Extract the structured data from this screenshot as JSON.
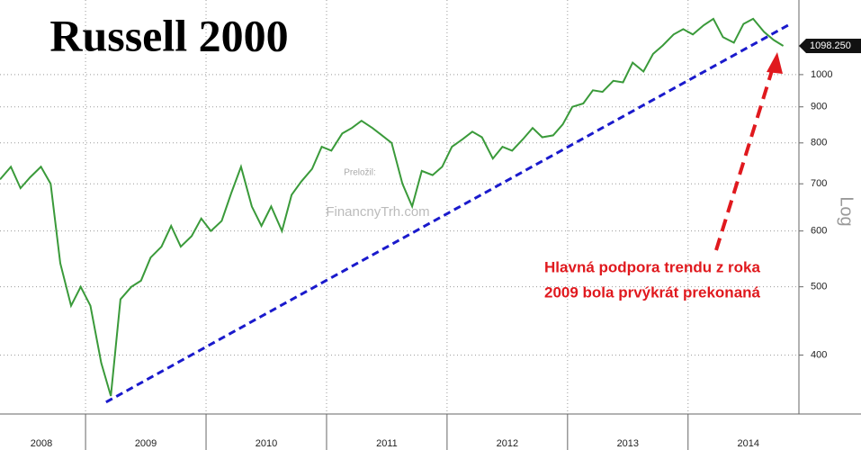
{
  "chart_data": {
    "type": "line",
    "title": "Russell 2000",
    "watermark": [
      "Preložil:",
      "FinancnyTrh.com"
    ],
    "y_axis_label": "Log",
    "log_scale": true,
    "grid": true,
    "xlim": [
      2008.29,
      2014.92
    ],
    "xticks": [
      2008,
      2009,
      2010,
      2011,
      2012,
      2013,
      2014
    ],
    "ylim": [
      330,
      1276
    ],
    "yticks": [
      400,
      500,
      600,
      700,
      800,
      900,
      1000
    ],
    "x": [
      2008.29,
      2008.38,
      2008.46,
      2008.54,
      2008.63,
      2008.71,
      2008.79,
      2008.88,
      2008.96,
      2009.04,
      2009.13,
      2009.21,
      2009.29,
      2009.38,
      2009.46,
      2009.54,
      2009.63,
      2009.71,
      2009.79,
      2009.88,
      2009.96,
      2010.04,
      2010.13,
      2010.21,
      2010.29,
      2010.38,
      2010.46,
      2010.54,
      2010.63,
      2010.71,
      2010.79,
      2010.88,
      2010.96,
      2011.04,
      2011.13,
      2011.21,
      2011.29,
      2011.38,
      2011.46,
      2011.54,
      2011.63,
      2011.71,
      2011.79,
      2011.88,
      2011.96,
      2012.04,
      2012.13,
      2012.21,
      2012.29,
      2012.38,
      2012.46,
      2012.54,
      2012.63,
      2012.71,
      2012.79,
      2012.88,
      2012.96,
      2013.04,
      2013.13,
      2013.21,
      2013.29,
      2013.38,
      2013.46,
      2013.54,
      2013.63,
      2013.71,
      2013.79,
      2013.88,
      2013.96,
      2014.04,
      2014.13,
      2014.21,
      2014.29,
      2014.38,
      2014.46,
      2014.54,
      2014.63,
      2014.71,
      2014.79
    ],
    "series": [
      {
        "name": "Russell 2000",
        "color": "#3a9a3a",
        "values": [
          710,
          740,
          690,
          715,
          740,
          700,
          540,
          470,
          500,
          470,
          390,
          350,
          480,
          500,
          510,
          550,
          570,
          610,
          570,
          590,
          625,
          600,
          620,
          680,
          740,
          650,
          610,
          650,
          600,
          675,
          705,
          735,
          790,
          780,
          825,
          840,
          860,
          840,
          820,
          800,
          700,
          650,
          730,
          720,
          740,
          790,
          810,
          830,
          815,
          760,
          790,
          780,
          810,
          840,
          815,
          820,
          850,
          900,
          910,
          950,
          945,
          980,
          975,
          1040,
          1010,
          1070,
          1100,
          1140,
          1160,
          1140,
          1175,
          1200,
          1130,
          1110,
          1180,
          1200,
          1150,
          1120,
          1098.25
        ]
      }
    ],
    "current_value": {
      "value": 1098.25,
      "label": "1098.250"
    },
    "trendline": {
      "x": [
        2009.17,
        2014.83
      ],
      "values": [
        343,
        1175
      ],
      "color": "#1a1acc"
    },
    "annotation": [
      "Hlavná podpora trendu z roka",
      "2009 bola prvýkrát prekonaná"
    ],
    "annotation_color": "#e0191e"
  }
}
